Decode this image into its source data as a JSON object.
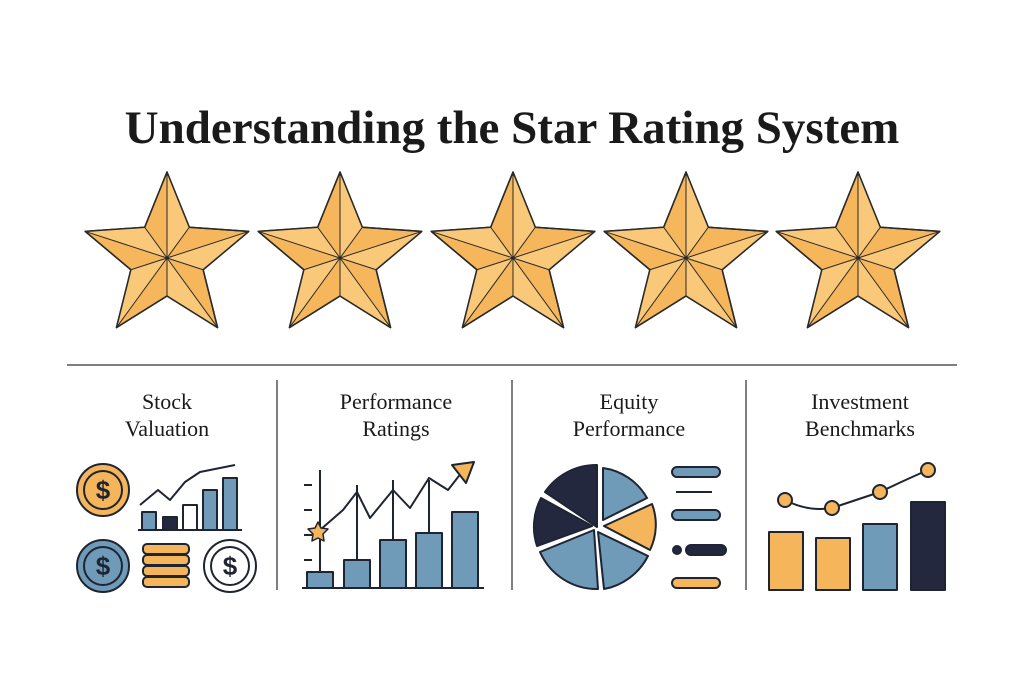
{
  "title": "Understanding the Star Rating System",
  "panels": [
    {
      "lines": [
        "Stock",
        "Valuation"
      ]
    },
    {
      "lines": [
        "Performance",
        "Ratings"
      ]
    },
    {
      "lines": [
        "Equity",
        "Performance"
      ]
    },
    {
      "lines": [
        "Investment",
        "Benchmarks"
      ]
    }
  ],
  "coin_symbol": "$"
}
